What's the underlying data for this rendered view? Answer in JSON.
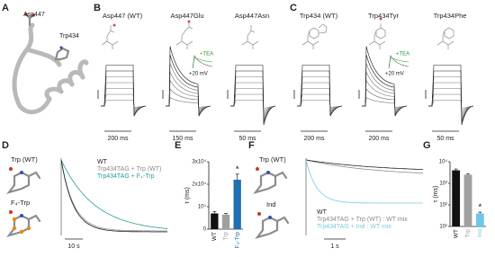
{
  "panels": {
    "A": {
      "label": "A",
      "residues": [
        "Asp447",
        "Trp434"
      ]
    },
    "B": {
      "label": "B",
      "titles": [
        "Asp447 (WT)",
        "Asp447Glu",
        "Asp447Asn"
      ],
      "scale_bars": [
        "200 ms",
        "150 ms",
        "50 ms"
      ],
      "inset": [
        "+TEA",
        "+20 mV"
      ]
    },
    "C": {
      "label": "C",
      "titles": [
        "Trp434 (WT)",
        "Trp434Tyr",
        "Trp434Phe"
      ],
      "scale_bars": [
        "200 ms",
        "200 ms",
        "50 ms"
      ],
      "inset": [
        "+TEA",
        "+20 mV"
      ]
    },
    "D": {
      "label": "D",
      "molecules": [
        "Trp (WT)",
        "F₄-Trp"
      ],
      "legend": [
        "WT",
        "Trp434TAG + Trp (WT)",
        "Trp434TAG + F₄-Trp"
      ],
      "colors": [
        "#222222",
        "#8a8a8a",
        "#2a9a9a"
      ],
      "scale_bar": "10 s"
    },
    "E": {
      "label": "E"
    },
    "F": {
      "label": "F",
      "molecules": [
        "Trp (WT)",
        "Ind"
      ],
      "legend": [
        "WT",
        "Trp434TAG + Trp (WT) : WT mix",
        "Trp434TAG + Ind : WT mix"
      ],
      "colors": [
        "#222222",
        "#8a8a8a",
        "#7cc8e0"
      ],
      "scale_bar": "1 s"
    },
    "G": {
      "label": "G"
    }
  },
  "chart_data": [
    {
      "type": "bar",
      "ylabel": "τ (ms)",
      "categories": [
        "WT",
        "Trp",
        "F₄-Trp"
      ],
      "values": [
        7000,
        6500,
        22000
      ],
      "errors": [
        800,
        500,
        2500
      ],
      "colors": [
        "#111111",
        "#a0a0a0",
        "#1f6fb3"
      ],
      "ylim": [
        0,
        30000
      ],
      "yticks": [
        0,
        {
          "value": 10000,
          "label": "10⁴"
        },
        {
          "value": 20000,
          "label": "2x10⁴"
        },
        {
          "value": 30000,
          "label": "3x10⁴"
        }
      ],
      "annotation": "*"
    },
    {
      "type": "bar",
      "ylabel": "τ (ms)",
      "categories": [
        "WT",
        "Trp",
        "Ind"
      ],
      "values": [
        4000,
        2500,
        40
      ],
      "errors": [
        600,
        300,
        6
      ],
      "colors": [
        "#111111",
        "#a0a0a0",
        "#6ec6ea"
      ],
      "ylim": [
        10,
        10000
      ],
      "log_scale": true,
      "yticks": [
        {
          "value": 10,
          "label": "10¹"
        },
        {
          "value": 100,
          "label": "10²"
        },
        {
          "value": 1000,
          "label": "10³"
        },
        {
          "value": 10000,
          "label": "10⁴"
        }
      ],
      "annotation": "*"
    }
  ]
}
